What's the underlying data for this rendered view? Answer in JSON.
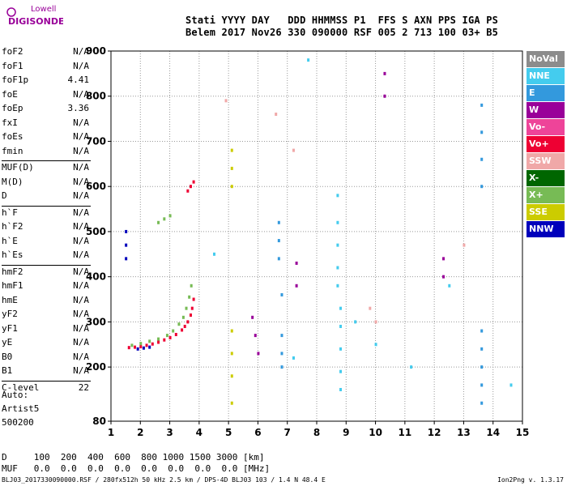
{
  "logo": {
    "line1": "Lowell",
    "line2": "DIGISONDE"
  },
  "header": {
    "line1": "Stati YYYY DAY   DDD HHMMSS P1  FFS S AXN PPS IGA PS",
    "line2": "Belem 2017 Nov26 330 090000 RSF 005 2 713 100 03+ B5"
  },
  "params": [
    {
      "name": "foF2",
      "value": "N/A"
    },
    {
      "name": "foF1",
      "value": "N/A"
    },
    {
      "name": "foF1p",
      "value": "4.41"
    },
    {
      "name": "foE",
      "value": "N/A"
    },
    {
      "name": "foEp",
      "value": "3.36"
    },
    {
      "name": "fxI",
      "value": "N/A"
    },
    {
      "name": "foEs",
      "value": "N/A"
    },
    {
      "name": "fmin",
      "value": "N/A"
    },
    {
      "name": "MUF(D)",
      "value": "N/A"
    },
    {
      "name": "M(D)",
      "value": "N/A"
    },
    {
      "name": "D",
      "value": "N/A"
    },
    {
      "name": "h`F",
      "value": "N/A"
    },
    {
      "name": "h`F2",
      "value": "N/A"
    },
    {
      "name": "h`E",
      "value": "N/A"
    },
    {
      "name": "h`Es",
      "value": "N/A"
    },
    {
      "name": "hmF2",
      "value": "N/A"
    },
    {
      "name": "hmF1",
      "value": "N/A"
    },
    {
      "name": "hmE",
      "value": "N/A"
    },
    {
      "name": "yF2",
      "value": "N/A"
    },
    {
      "name": "yF1",
      "value": "N/A"
    },
    {
      "name": "yE",
      "value": "N/A"
    },
    {
      "name": "B0",
      "value": "N/A"
    },
    {
      "name": "B1",
      "value": "N/A"
    },
    {
      "name": "C-level",
      "value": "22"
    }
  ],
  "auto": {
    "line1": "Auto:",
    "line2": "Artist5",
    "line3": "500200"
  },
  "legend": [
    {
      "label": "NoVal",
      "color": "#8c8c8c"
    },
    {
      "label": "NNE",
      "color": "#44ccee"
    },
    {
      "label": "E",
      "color": "#3399dd"
    },
    {
      "label": "W",
      "color": "#990099"
    },
    {
      "label": "Vo-",
      "color": "#ee4499"
    },
    {
      "label": "Vo+",
      "color": "#ee0033"
    },
    {
      "label": "SSW",
      "color": "#f0a8a8"
    },
    {
      "label": "X-",
      "color": "#006600"
    },
    {
      "label": "X+",
      "color": "#77bb55"
    },
    {
      "label": "SSE",
      "color": "#cccc00"
    },
    {
      "label": "NNW",
      "color": "#0000bb"
    }
  ],
  "bottom": {
    "d_line": "D     100  200  400  600  800 1000 1500 3000 [km]",
    "muf_line": "MUF   0.0  0.0  0.0  0.0  0.0  0.0  0.0  0.0 [MHz]"
  },
  "footer": {
    "left": "BLJ03_2017330090000.RSF / 280fx512h 50 kHz 2.5 km / DPS-4D BLJ03 103 / 1.4 N 48.4 E",
    "right": "Ion2Png v. 1.3.17"
  },
  "chart_data": {
    "type": "scatter",
    "xlim": [
      1,
      15
    ],
    "ylim": [
      80,
      900
    ],
    "x_ticks": [
      1,
      2,
      3,
      4,
      5,
      6,
      7,
      8,
      9,
      10,
      11,
      12,
      13,
      14,
      15
    ],
    "y_ticks": [
      80,
      200,
      300,
      400,
      500,
      600,
      700,
      800,
      900
    ],
    "traces": [
      {
        "name": "Vo+",
        "color": "#ee0033",
        "points": [
          [
            1.6,
            243
          ],
          [
            1.8,
            244
          ],
          [
            2.0,
            245
          ],
          [
            2.2,
            248
          ],
          [
            2.4,
            251
          ],
          [
            2.6,
            255
          ],
          [
            2.8,
            260
          ],
          [
            3.0,
            265
          ],
          [
            3.2,
            272
          ],
          [
            3.4,
            282
          ],
          [
            3.5,
            290
          ],
          [
            3.6,
            300
          ],
          [
            3.7,
            315
          ],
          [
            3.75,
            330
          ],
          [
            3.8,
            350
          ]
        ]
      },
      {
        "name": "X+",
        "color": "#77bb55",
        "points": [
          [
            1.7,
            248
          ],
          [
            2.0,
            252
          ],
          [
            2.3,
            257
          ],
          [
            2.6,
            262
          ],
          [
            2.9,
            270
          ],
          [
            3.1,
            280
          ],
          [
            3.3,
            295
          ],
          [
            3.45,
            310
          ],
          [
            3.55,
            330
          ],
          [
            3.65,
            355
          ],
          [
            3.72,
            380
          ]
        ]
      },
      {
        "name": "NNW",
        "color": "#0000bb",
        "points": [
          [
            1.9,
            240
          ],
          [
            2.1,
            242
          ],
          [
            2.3,
            244
          ]
        ]
      },
      {
        "name": "X+",
        "color": "#77bb55",
        "points": [
          [
            2.6,
            520
          ],
          [
            2.8,
            528
          ],
          [
            3.0,
            535
          ]
        ]
      },
      {
        "name": "Vo+",
        "color": "#ee0033",
        "points": [
          [
            3.6,
            590
          ],
          [
            3.7,
            600
          ],
          [
            3.8,
            610
          ]
        ]
      },
      {
        "name": "NNW",
        "color": "#0000bb",
        "points": [
          [
            1.5,
            500
          ],
          [
            1.5,
            470
          ],
          [
            1.5,
            440
          ]
        ]
      },
      {
        "name": "E",
        "color": "#3399dd",
        "points": [
          [
            6.7,
            520
          ],
          [
            6.7,
            480
          ],
          [
            6.7,
            440
          ],
          [
            6.8,
            360
          ],
          [
            6.8,
            270
          ],
          [
            6.8,
            230
          ],
          [
            6.8,
            200
          ]
        ]
      },
      {
        "name": "NNE",
        "color": "#44ccee",
        "points": [
          [
            8.7,
            580
          ],
          [
            8.7,
            520
          ],
          [
            8.7,
            470
          ],
          [
            8.7,
            420
          ],
          [
            8.7,
            380
          ],
          [
            8.8,
            330
          ],
          [
            8.8,
            290
          ],
          [
            8.8,
            240
          ],
          [
            8.8,
            190
          ],
          [
            8.8,
            150
          ]
        ]
      },
      {
        "name": "E",
        "color": "#3399dd",
        "points": [
          [
            13.6,
            780
          ],
          [
            13.6,
            720
          ],
          [
            13.6,
            660
          ],
          [
            13.6,
            600
          ],
          [
            13.6,
            280
          ],
          [
            13.6,
            240
          ],
          [
            13.6,
            200
          ],
          [
            13.6,
            160
          ],
          [
            13.6,
            120
          ]
        ]
      },
      {
        "name": "SSE",
        "color": "#cccc00",
        "points": [
          [
            5.1,
            680
          ],
          [
            5.1,
            640
          ],
          [
            5.1,
            600
          ],
          [
            5.1,
            280
          ],
          [
            5.1,
            230
          ],
          [
            5.1,
            180
          ],
          [
            5.1,
            120
          ]
        ]
      },
      {
        "name": "W",
        "color": "#990099",
        "points": [
          [
            5.8,
            310
          ],
          [
            5.9,
            270
          ],
          [
            6.0,
            230
          ],
          [
            7.3,
            430
          ],
          [
            7.3,
            380
          ],
          [
            10.3,
            850
          ],
          [
            10.3,
            800
          ],
          [
            12.3,
            440
          ],
          [
            12.3,
            400
          ]
        ]
      },
      {
        "name": "SSW",
        "color": "#f0a8a8",
        "points": [
          [
            4.9,
            790
          ],
          [
            6.6,
            760
          ],
          [
            7.2,
            680
          ],
          [
            9.8,
            330
          ],
          [
            10.0,
            300
          ],
          [
            13.0,
            470
          ]
        ]
      },
      {
        "name": "NNE",
        "color": "#44ccee",
        "points": [
          [
            4.5,
            450
          ],
          [
            7.2,
            220
          ],
          [
            7.7,
            880
          ],
          [
            9.3,
            300
          ],
          [
            10.0,
            250
          ],
          [
            11.2,
            200
          ],
          [
            12.5,
            380
          ],
          [
            14.6,
            160
          ]
        ]
      }
    ]
  }
}
